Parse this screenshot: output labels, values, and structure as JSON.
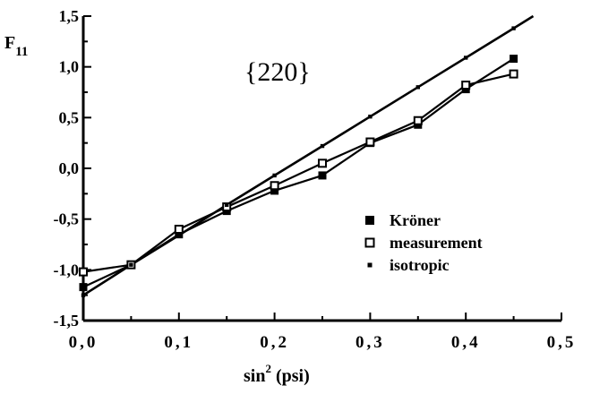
{
  "chart_data": {
    "type": "line",
    "title": "",
    "ylabel": "F",
    "ylabel_sub": "11",
    "xlabel_pre": "sin",
    "xlabel_sup": "2",
    "xlabel_post": " (psi)",
    "annotation": "{220}",
    "xlim": [
      0.0,
      0.5
    ],
    "ylim": [
      -1.5,
      1.5
    ],
    "x_ticks": [
      0.0,
      0.1,
      0.2,
      0.3,
      0.4,
      0.5
    ],
    "x_tick_labels": [
      "0,0",
      "0,1",
      "0,2",
      "0,3",
      "0,4",
      "0,5"
    ],
    "y_ticks": [
      1.5,
      1.0,
      0.5,
      0.0,
      -0.5,
      -1.0,
      -1.5
    ],
    "y_tick_labels": [
      "1,5",
      "1,0",
      "0,5",
      "0,0",
      "-0,5",
      "-1,0",
      "-1,5"
    ],
    "grid": false,
    "legend_position": "lower-right",
    "series": [
      {
        "name": "Kröner",
        "marker": "filled-square",
        "color": "#000000",
        "x": [
          0.0,
          0.05,
          0.1,
          0.15,
          0.2,
          0.25,
          0.3,
          0.35,
          0.4,
          0.45
        ],
        "y": [
          -1.17,
          -0.95,
          -0.65,
          -0.42,
          -0.22,
          -0.07,
          0.25,
          0.43,
          0.78,
          1.08
        ]
      },
      {
        "name": "measurement",
        "marker": "open-square",
        "color": "#000000",
        "x": [
          0.0,
          0.05,
          0.1,
          0.15,
          0.2,
          0.25,
          0.3,
          0.35,
          0.4,
          0.45
        ],
        "y": [
          -1.02,
          -0.95,
          -0.6,
          -0.38,
          -0.17,
          0.05,
          0.26,
          0.47,
          0.82,
          0.93
        ]
      },
      {
        "name": "isotropic",
        "marker": "small-dot",
        "color": "#000000",
        "x": [
          0.0,
          0.05,
          0.1,
          0.15,
          0.2,
          0.25,
          0.3,
          0.35,
          0.4,
          0.45
        ],
        "y": [
          -1.25,
          -0.95,
          -0.66,
          -0.36,
          -0.07,
          0.22,
          0.51,
          0.8,
          1.09,
          1.38
        ],
        "extends_to_top": true
      }
    ]
  }
}
